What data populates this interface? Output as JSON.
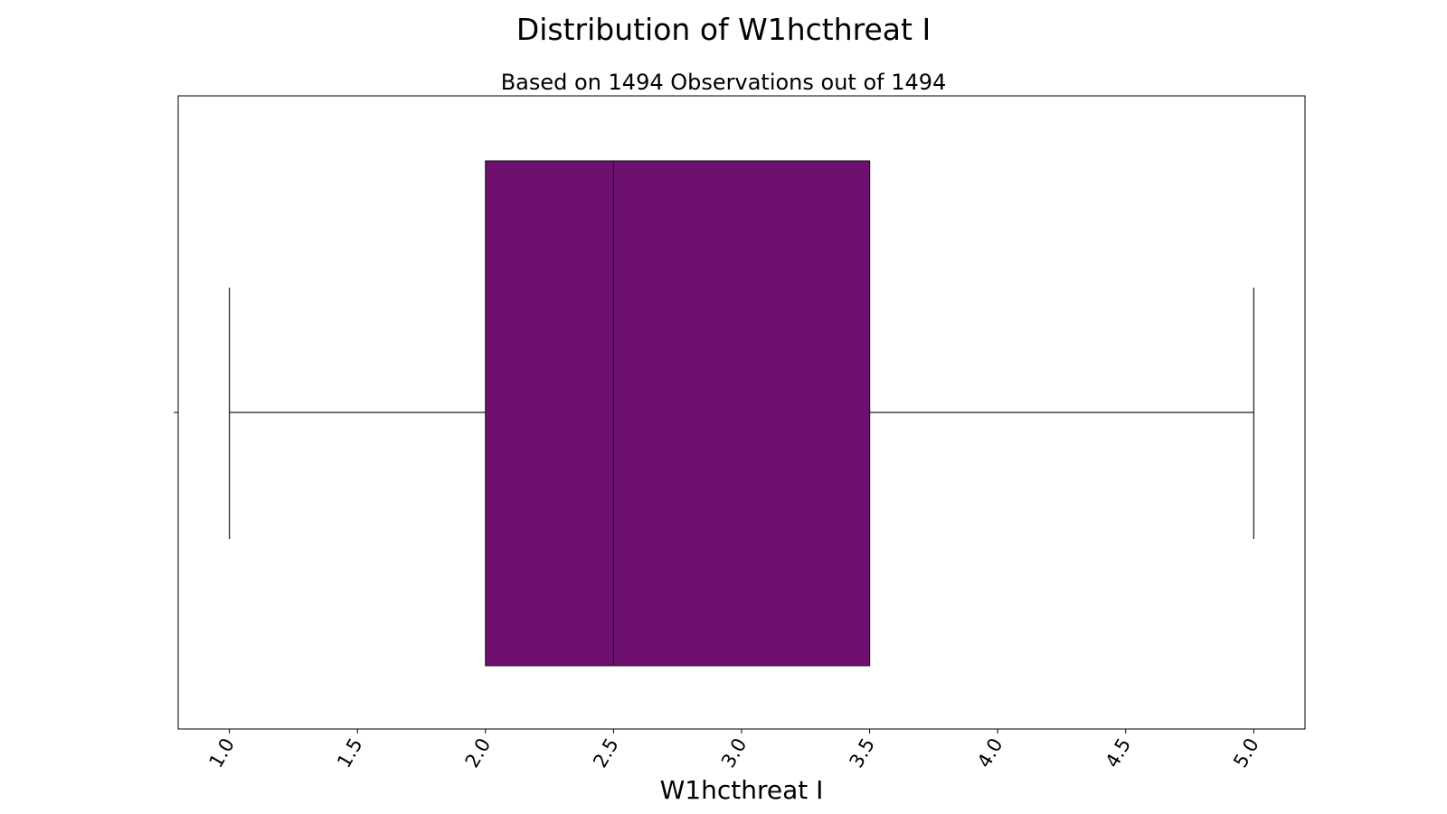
{
  "chart_data": {
    "type": "box",
    "title": "Distribution of W1hcthreat I",
    "subtitle": "Based on 1494 Observations out of 1494",
    "xlabel": "W1hcthreat I",
    "ylabel": "",
    "xlim": [
      0.8,
      5.2
    ],
    "xticks": [
      "1.0",
      "1.5",
      "2.0",
      "2.5",
      "3.0",
      "3.5",
      "4.0",
      "4.5",
      "5.0"
    ],
    "orientation": "horizontal",
    "box": {
      "whisker_low": 1.0,
      "q1": 2.0,
      "median": 2.5,
      "q3": 3.5,
      "whisker_high": 5.0
    },
    "box_color": "#6f0f6f",
    "grid": false,
    "legend": "none"
  }
}
